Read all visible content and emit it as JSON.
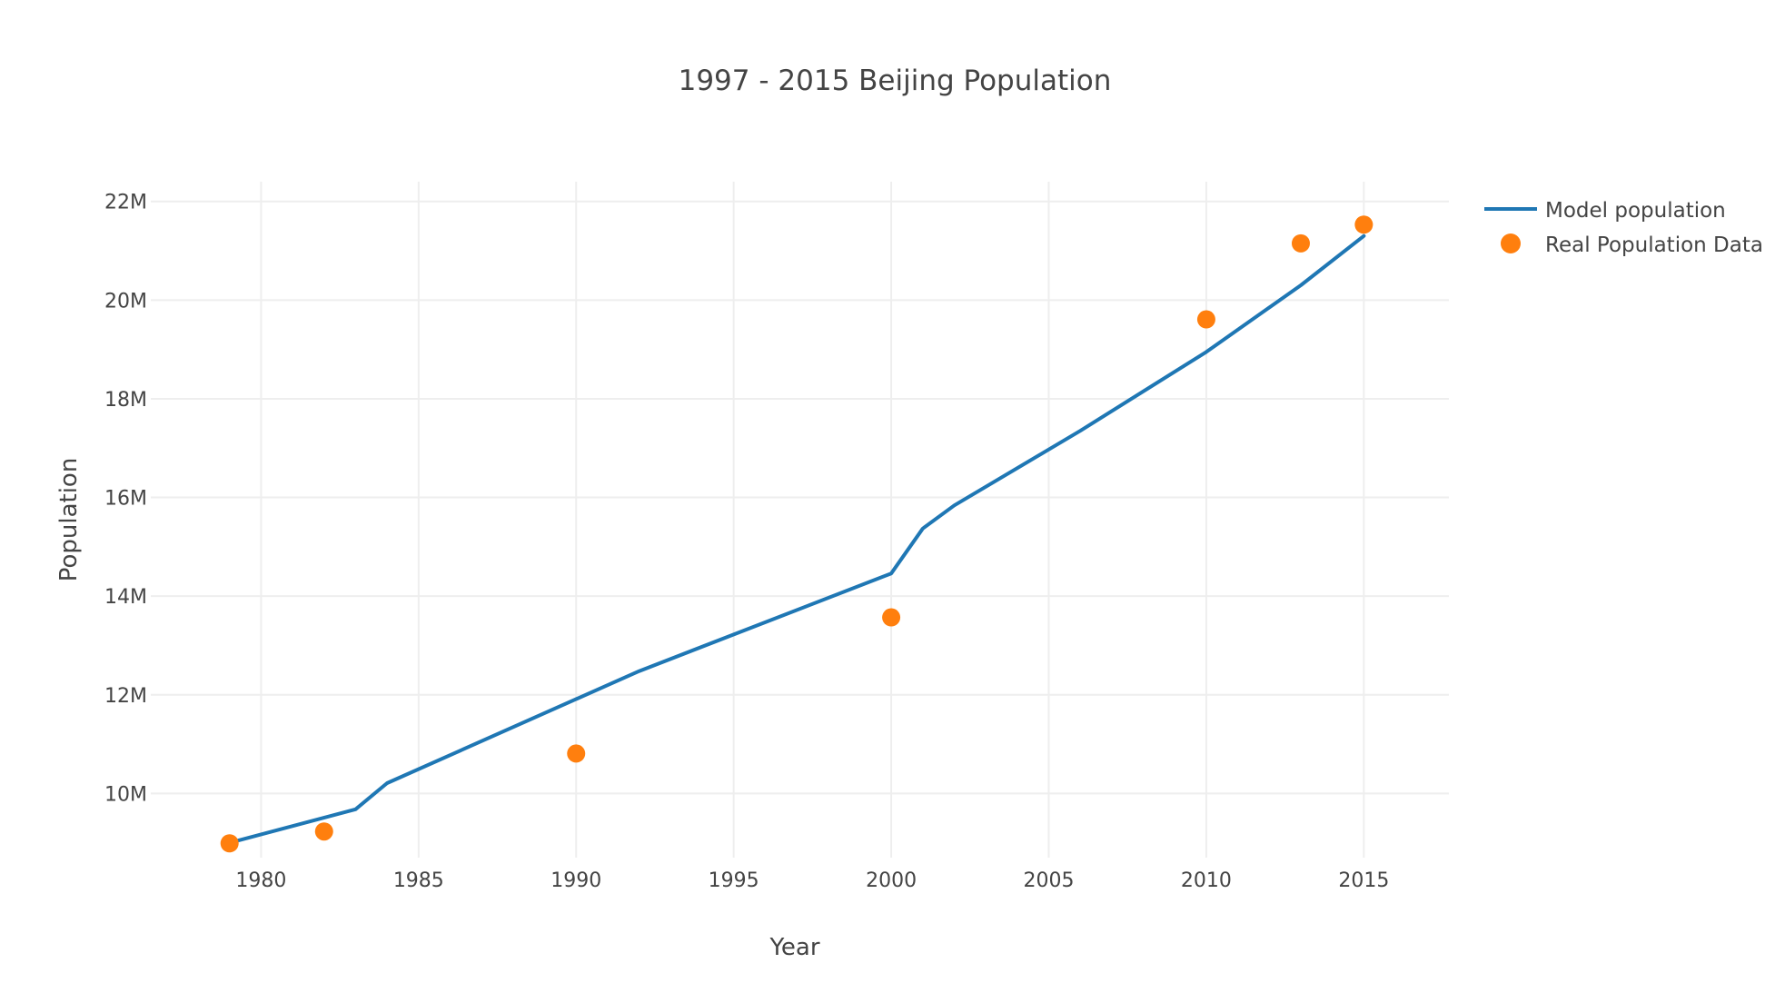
{
  "chart_data": {
    "type": "line",
    "title": "1997 - 2015 Beijing Population",
    "xlabel": "Year",
    "ylabel": "Population",
    "xlim": [
      1976.5,
      2017.7
    ],
    "ylim": [
      8700000,
      22400000
    ],
    "x_ticks": [
      1980,
      1985,
      1990,
      1995,
      2000,
      2005,
      2010,
      2015
    ],
    "y_ticks": [
      10000000,
      12000000,
      14000000,
      16000000,
      18000000,
      20000000,
      22000000
    ],
    "x_tick_labels": [
      "1980",
      "1985",
      "1990",
      "1995",
      "2000",
      "2005",
      "2010",
      "2015"
    ],
    "y_tick_labels": [
      "10M",
      "12M",
      "14M",
      "16M",
      "18M",
      "20M",
      "22M"
    ],
    "grid": true,
    "legend_position": "top-right",
    "series": [
      {
        "name": "Model population",
        "mode": "lines",
        "color": "#1f77b4",
        "x": [
          1979,
          1983,
          1984,
          1992,
          2000,
          2001,
          2002,
          2006,
          2010,
          2013,
          2015
        ],
        "y": [
          9000000,
          9680000,
          10210000,
          12480000,
          14460000,
          15370000,
          15840000,
          17350000,
          18950000,
          20300000,
          21300000
        ]
      },
      {
        "name": "Real Population Data",
        "mode": "markers",
        "color": "#ff7f0e",
        "x": [
          1979,
          1982,
          1990,
          2000,
          2010,
          2013,
          2015
        ],
        "y": [
          8990000,
          9230000,
          10810000,
          13570000,
          19610000,
          21150000,
          21530000
        ]
      }
    ]
  }
}
